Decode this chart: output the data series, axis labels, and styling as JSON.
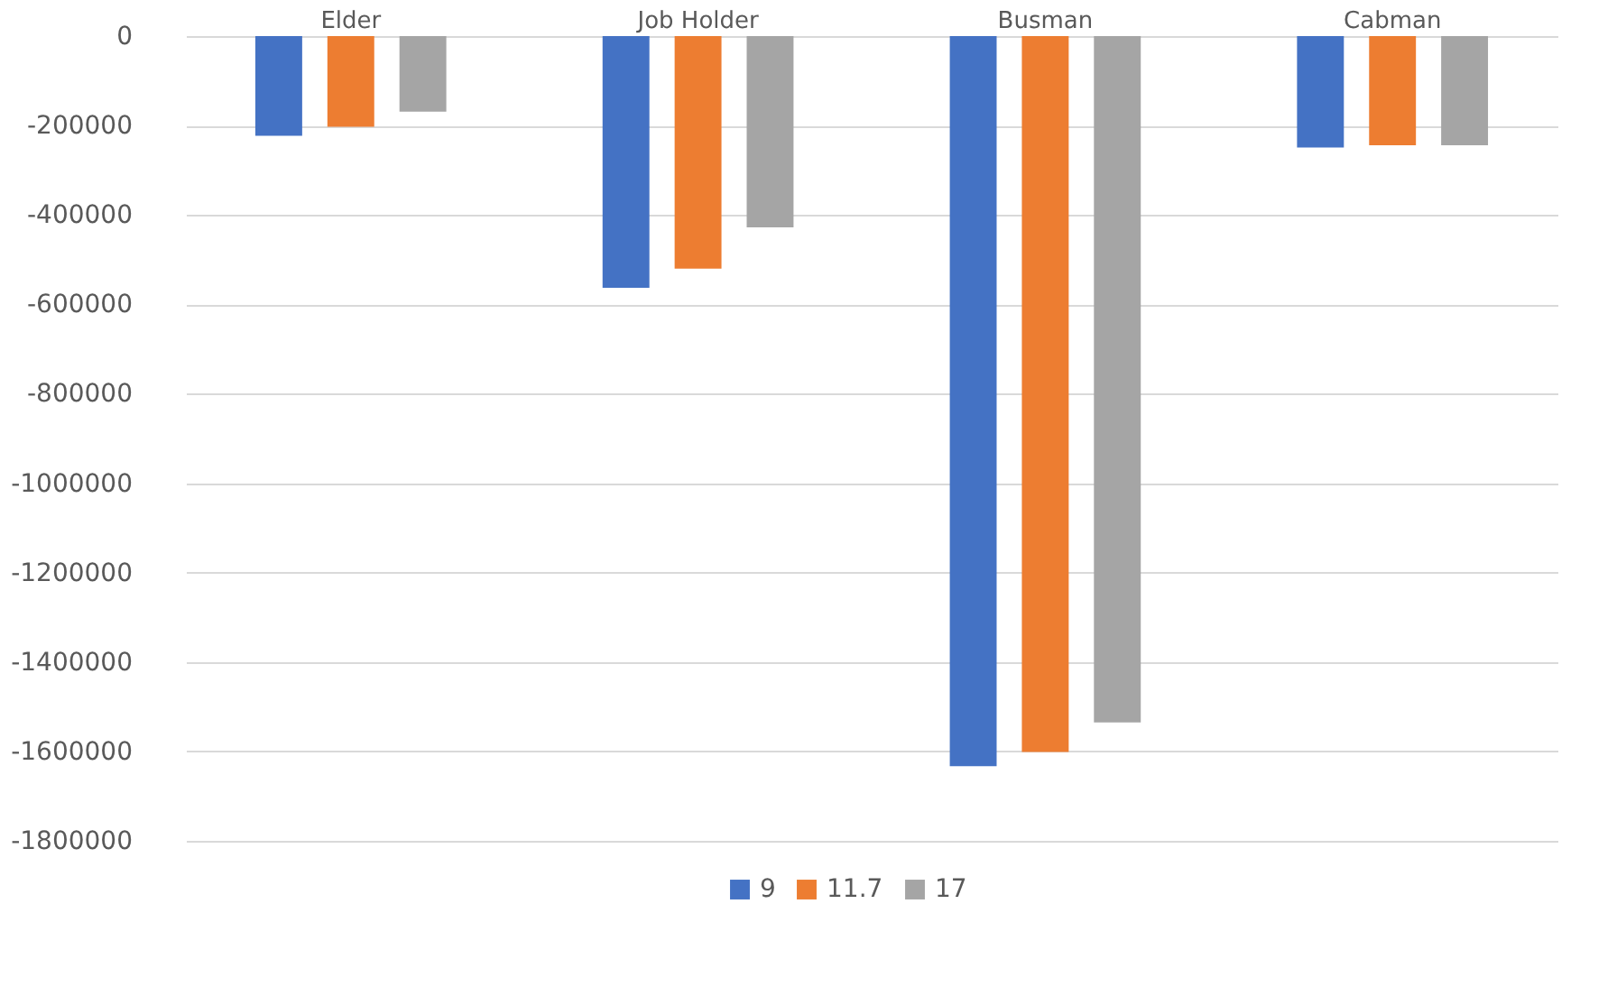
{
  "chart_data": {
    "type": "bar",
    "categories": [
      "Elder",
      "Job Holder",
      "Busman",
      "Cabman"
    ],
    "series": [
      {
        "name": "9",
        "color": "#4472c4",
        "values": [
          -223000,
          -563000,
          -1633000,
          -249000
        ]
      },
      {
        "name": "11.7",
        "color": "#ed7d31",
        "values": [
          -203000,
          -520000,
          -1601000,
          -244000
        ]
      },
      {
        "name": "17",
        "color": "#a5a5a5",
        "values": [
          -169000,
          -428000,
          -1535000,
          -244000
        ]
      }
    ],
    "ylim": [
      -1800000,
      0
    ],
    "yticks": [
      0,
      -200000,
      -400000,
      -600000,
      -800000,
      -1000000,
      -1200000,
      -1400000,
      -1600000,
      -1800000
    ],
    "grid": "y",
    "legend": "bottom"
  }
}
